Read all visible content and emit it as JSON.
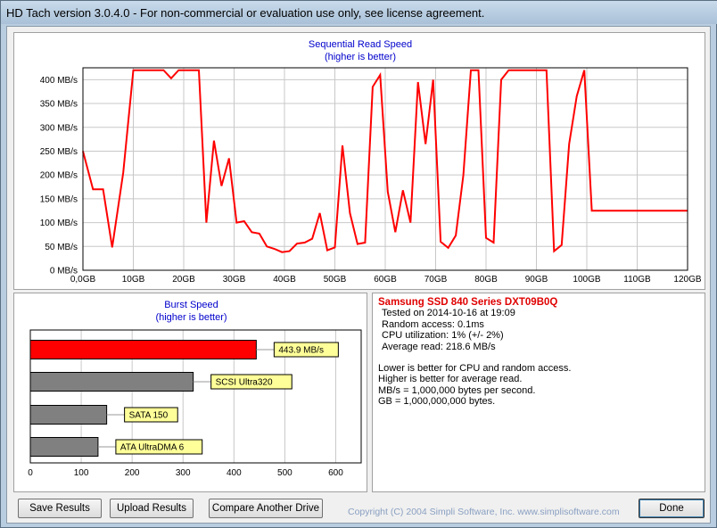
{
  "window": {
    "title": "HD Tach version 3.0.4.0  - For non-commercial or evaluation use only, see license agreement."
  },
  "sequential": {
    "title": "Sequential Read Speed",
    "subtitle": "(higher is better)",
    "y_ticks": [
      "0 MB/s",
      "50 MB/s",
      "100 MB/s",
      "150 MB/s",
      "200 MB/s",
      "250 MB/s",
      "300 MB/s",
      "350 MB/s",
      "400 MB/s"
    ],
    "x_ticks": [
      "0,0GB",
      "10GB",
      "20GB",
      "30GB",
      "40GB",
      "50GB",
      "60GB",
      "70GB",
      "80GB",
      "90GB",
      "100GB",
      "110GB",
      "120GB"
    ]
  },
  "burst": {
    "title": "Burst Speed",
    "subtitle": "(higher is better)",
    "x_ticks": [
      "0",
      "100",
      "200",
      "300",
      "400",
      "500",
      "600"
    ]
  },
  "chart_data": [
    {
      "type": "line",
      "title": "Sequential Read Speed",
      "subtitle": "(higher is better)",
      "xlabel": "",
      "ylabel": "",
      "xlim": [
        0,
        120
      ],
      "ylim": [
        0,
        425
      ],
      "color": "#ff0000",
      "x": [
        0,
        2,
        4,
        5.8,
        8,
        10,
        12,
        14,
        16,
        17.5,
        19,
        21,
        23,
        24.5,
        26,
        27.5,
        29,
        30.5,
        32,
        33.5,
        35,
        36.5,
        38,
        39.5,
        41,
        42.5,
        44,
        45.5,
        47,
        48.5,
        50,
        51.5,
        53,
        54.5,
        56,
        57.5,
        59,
        60.5,
        62,
        63.5,
        65,
        66.5,
        68,
        69.5,
        71,
        72.5,
        74,
        75.5,
        77,
        78.5,
        80,
        81.5,
        83,
        84.5,
        86,
        87.5,
        89,
        90.5,
        92,
        93.5,
        95,
        96.5,
        98,
        99.5,
        101,
        102.5,
        104,
        105.5,
        107,
        108.5,
        110,
        111.5,
        113,
        114.5,
        116,
        117.5,
        119,
        120
      ],
      "y": [
        250,
        170,
        170,
        48,
        205,
        420,
        420,
        420,
        420,
        403,
        420,
        420,
        420,
        100,
        272,
        177,
        235,
        100,
        103,
        80,
        77,
        50,
        45,
        38,
        40,
        56,
        58,
        66,
        120,
        42,
        48,
        262,
        120,
        55,
        58,
        385,
        410,
        165,
        80,
        168,
        100,
        395,
        265,
        400,
        60,
        47,
        73,
        200,
        420,
        420,
        68,
        58,
        400,
        420,
        420,
        420,
        420,
        420,
        420,
        40,
        53,
        265,
        365,
        420,
        125,
        125,
        125,
        125,
        125,
        125,
        125,
        125,
        125,
        125,
        125,
        125,
        125,
        125
      ],
      "grid": true,
      "ticks_y": [
        0,
        50,
        100,
        150,
        200,
        250,
        300,
        350,
        400
      ],
      "ticks_x": [
        0,
        10,
        20,
        30,
        40,
        50,
        60,
        70,
        80,
        90,
        100,
        110,
        120
      ]
    },
    {
      "type": "bar",
      "title": "Burst Speed",
      "subtitle": "(higher is better)",
      "xlabel": "",
      "ylabel": "",
      "categories": [
        "443.9 MB/s",
        "SCSI Ultra320",
        "SATA 150",
        "ATA UltraDMA 6"
      ],
      "values": [
        443.9,
        320,
        150,
        133
      ],
      "colors": [
        "#ff0000",
        "#808080",
        "#808080",
        "#808080"
      ],
      "xlim": [
        0,
        650
      ],
      "grid": true
    }
  ],
  "info": {
    "drive": "Samsung SSD 840 Series DXT09B0Q",
    "tested_on": "Tested on 2014-10-16 at 19:09",
    "random_access": "Random access: 0.1ms",
    "cpu": "CPU utilization: 1% (+/- 2%)",
    "avg_read": "Average read: 218.6 MB/s",
    "note1": "Lower is better for CPU and random access.",
    "note2": "Higher is better for average read.",
    "note3": "MB/s = 1,000,000 bytes per second.",
    "note4": "GB = 1,000,000,000 bytes."
  },
  "buttons": {
    "save": "Save Results",
    "upload": "Upload Results",
    "compare": "Compare Another Drive",
    "done": "Done"
  },
  "copyright": "Copyright (C) 2004 Simpli Software, Inc. www.simplisoftware.com"
}
